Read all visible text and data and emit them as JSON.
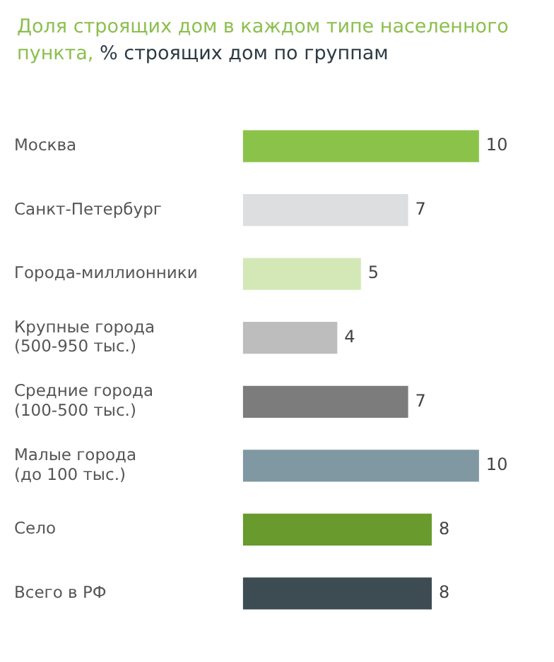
{
  "chart_data": {
    "type": "bar",
    "orientation": "horizontal",
    "title": "Доля строящих дом в каждом типе населенного пункта,",
    "subtitle": "% строящих дом по группам",
    "categories": [
      "Москва",
      "Санкт-Петербург",
      "Города-миллионники",
      "Крупные города (500-950 тыс.)",
      "Средние города (100-500 тыс.)",
      "Малые города (до 100 тыс.)",
      "Село",
      "Всего в РФ"
    ],
    "values": [
      10,
      7,
      5,
      4,
      7,
      10,
      8,
      8
    ],
    "colors": [
      "#8bc34a",
      "#dcdee0",
      "#d3e8b6",
      "#bdbdbd",
      "#7c7c7c",
      "#7f98a1",
      "#689a2e",
      "#3d4b53"
    ],
    "data_labels": true,
    "tick_labels": "y"
  }
}
